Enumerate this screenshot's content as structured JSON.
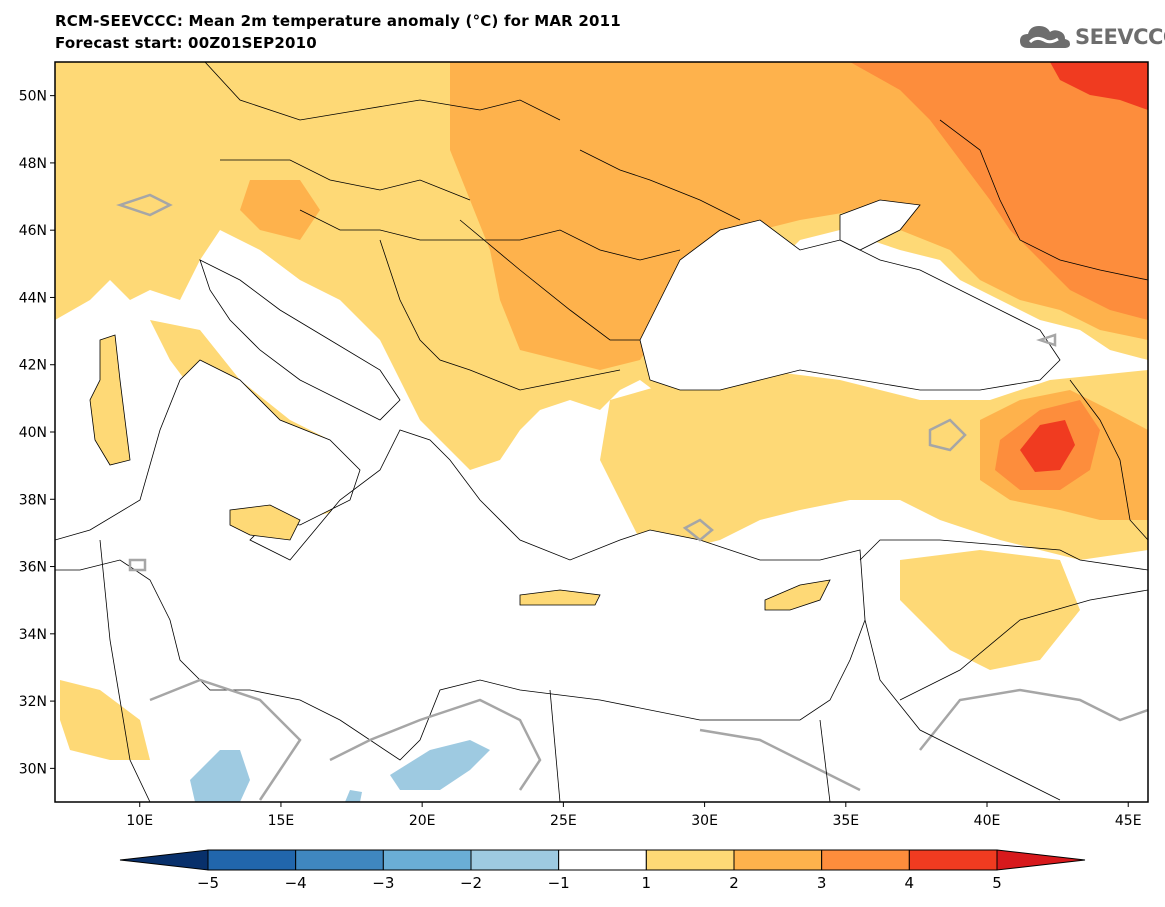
{
  "header": {
    "title_line1": "RCM-SEEVCCC: Mean 2m temperature anomaly (°C) for MAR 2011",
    "title_line2": "Forecast start: 00Z01SEP2010",
    "logo_text": "SEEVCCC",
    "logo_icon": "cloud-icon"
  },
  "map": {
    "projection": "lat-lon",
    "lon_range": [
      7,
      45.7
    ],
    "lat_range": [
      29,
      51
    ],
    "lat_ticks": [
      {
        "value": 50,
        "label": "50N"
      },
      {
        "value": 48,
        "label": "48N"
      },
      {
        "value": 46,
        "label": "46N"
      },
      {
        "value": 44,
        "label": "44N"
      },
      {
        "value": 42,
        "label": "42N"
      },
      {
        "value": 40,
        "label": "40N"
      },
      {
        "value": 38,
        "label": "38N"
      },
      {
        "value": 36,
        "label": "36N"
      },
      {
        "value": 34,
        "label": "34N"
      },
      {
        "value": 32,
        "label": "32N"
      },
      {
        "value": 30,
        "label": "30N"
      }
    ],
    "lon_ticks": [
      {
        "value": 10,
        "label": "10E"
      },
      {
        "value": 15,
        "label": "15E"
      },
      {
        "value": 20,
        "label": "20E"
      },
      {
        "value": 25,
        "label": "25E"
      },
      {
        "value": 30,
        "label": "30E"
      },
      {
        "value": 35,
        "label": "35E"
      },
      {
        "value": 40,
        "label": "40E"
      },
      {
        "value": 45,
        "label": "45E"
      }
    ],
    "anomaly_colors": {
      "below_-5": "#08306b",
      "-5_-4": "#2166ac",
      "-4_-3": "#3f87c0",
      "-3_-2": "#6aaed6",
      "-2_-1": "#9ecae1",
      "-1_1": "#ffffff",
      "1_2": "#fed976",
      "2_3": "#feb24c",
      "3_4": "#fd8d3c",
      "4_5": "#f03b20",
      "above_5": "#d7191c"
    },
    "land_color": "#ffffff",
    "coastline_color": "#000000",
    "zero_contour_color": "#a6a6a6"
  },
  "colorbar": {
    "labels": [
      "−5",
      "−4",
      "−3",
      "−2",
      "−1",
      "1",
      "2",
      "3",
      "4",
      "5"
    ],
    "colors": [
      "#08306b",
      "#2166ac",
      "#3f87c0",
      "#6aaed6",
      "#9ecae1",
      "#ffffff",
      "#fed976",
      "#feb24c",
      "#fd8d3c",
      "#f03b20",
      "#d7191c"
    ]
  }
}
